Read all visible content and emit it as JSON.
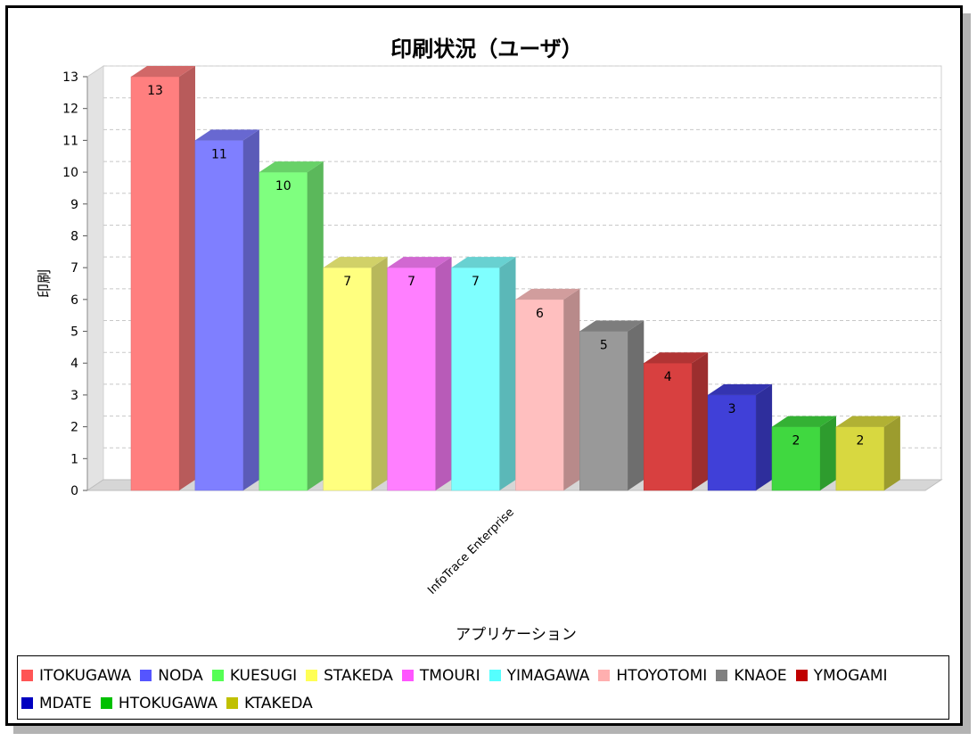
{
  "chart_data": {
    "type": "bar",
    "title": "印刷状況（ユーザ）",
    "xlabel": "アプリケーション",
    "ylabel": "印刷",
    "categories": [
      "InfoTrace Enterprise"
    ],
    "ylim": [
      0,
      13
    ],
    "yticks": [
      0,
      1,
      2,
      3,
      4,
      5,
      6,
      7,
      8,
      9,
      10,
      11,
      12,
      13
    ],
    "grid": true,
    "legend_position": "bottom",
    "series": [
      {
        "name": "ITOKUGAWA",
        "values": [
          13
        ],
        "color": "#ff7f7f",
        "legend_color": "#ff5555"
      },
      {
        "name": "NODA",
        "values": [
          11
        ],
        "color": "#7f7fff",
        "legend_color": "#5555ff"
      },
      {
        "name": "KUESUGI",
        "values": [
          10
        ],
        "color": "#7fff7f",
        "legend_color": "#55ff55"
      },
      {
        "name": "STAKEDA",
        "values": [
          7
        ],
        "color": "#ffff7f",
        "legend_color": "#ffff55"
      },
      {
        "name": "TMOURI",
        "values": [
          7
        ],
        "color": "#ff7fff",
        "legend_color": "#ff55ff"
      },
      {
        "name": "YIMAGAWA",
        "values": [
          7
        ],
        "color": "#7fffff",
        "legend_color": "#55ffff"
      },
      {
        "name": "HTOYOTOMI",
        "values": [
          6
        ],
        "color": "#ffbfbf",
        "legend_color": "#ffafaf"
      },
      {
        "name": "KNAOE",
        "values": [
          5
        ],
        "color": "#999999",
        "legend_color": "#808080"
      },
      {
        "name": "YMOGAMI",
        "values": [
          4
        ],
        "color": "#d84040",
        "legend_color": "#c00000"
      },
      {
        "name": "MDATE",
        "values": [
          3
        ],
        "color": "#4040d8",
        "legend_color": "#0000c0"
      },
      {
        "name": "HTOKUGAWA",
        "values": [
          2
        ],
        "color": "#40d840",
        "legend_color": "#00c000"
      },
      {
        "name": "KTAKEDA",
        "values": [
          2
        ],
        "color": "#d8d840",
        "legend_color": "#c0c000"
      }
    ]
  }
}
